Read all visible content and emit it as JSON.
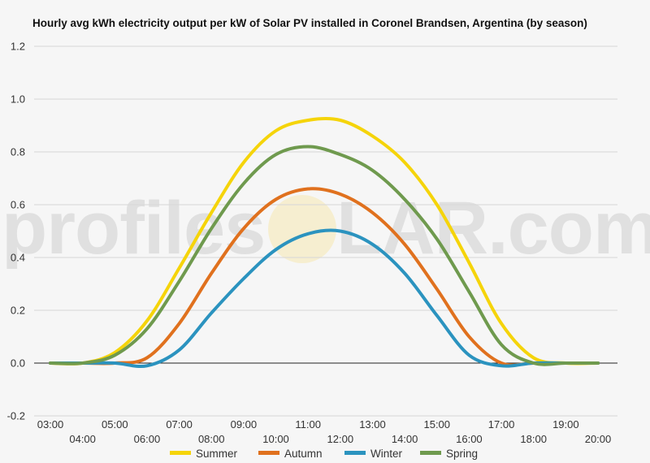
{
  "watermark": {
    "left": "profiles",
    "right": "LAR.com"
  },
  "chart_data": {
    "type": "line",
    "title": "Hourly avg kWh electricity output per kW of Solar PV installed in Coronel Brandsen, Argentina (by season)",
    "xlabel": "",
    "ylabel": "",
    "ylim": [
      -0.2,
      1.2
    ],
    "yticks": [
      1.2,
      1.0,
      0.8,
      0.6,
      0.4,
      0.2,
      0.0,
      -0.2
    ],
    "ytick_labels": [
      "1.2",
      "1.0",
      "0.8",
      "0.6",
      "0.4",
      "0.2",
      "0.0",
      "-0.2"
    ],
    "x": [
      "03:00",
      "04:00",
      "05:00",
      "06:00",
      "07:00",
      "08:00",
      "09:00",
      "10:00",
      "11:00",
      "12:00",
      "13:00",
      "14:00",
      "15:00",
      "16:00",
      "17:00",
      "18:00",
      "19:00",
      "20:00"
    ],
    "grid": true,
    "legend_position": "bottom",
    "series": [
      {
        "name": "Summer",
        "color": "#f5d40a",
        "values": [
          0.0,
          0.0,
          0.04,
          0.16,
          0.36,
          0.57,
          0.76,
          0.88,
          0.92,
          0.92,
          0.86,
          0.76,
          0.6,
          0.38,
          0.15,
          0.02,
          0.0,
          0.0
        ]
      },
      {
        "name": "Autumn",
        "color": "#e0711e",
        "values": [
          0.0,
          0.0,
          0.0,
          0.02,
          0.15,
          0.34,
          0.51,
          0.62,
          0.66,
          0.64,
          0.57,
          0.45,
          0.28,
          0.1,
          0.0,
          0.0,
          0.0,
          0.0
        ]
      },
      {
        "name": "Winter",
        "color": "#2b93bf",
        "values": [
          0.0,
          0.0,
          0.0,
          -0.01,
          0.05,
          0.19,
          0.32,
          0.43,
          0.49,
          0.5,
          0.45,
          0.34,
          0.18,
          0.03,
          -0.01,
          0.0,
          0.0,
          0.0
        ]
      },
      {
        "name": "Spring",
        "color": "#6f9a4e",
        "values": [
          0.0,
          0.0,
          0.03,
          0.13,
          0.31,
          0.51,
          0.68,
          0.79,
          0.82,
          0.79,
          0.73,
          0.62,
          0.47,
          0.27,
          0.07,
          0.0,
          0.0,
          0.0
        ]
      }
    ]
  }
}
